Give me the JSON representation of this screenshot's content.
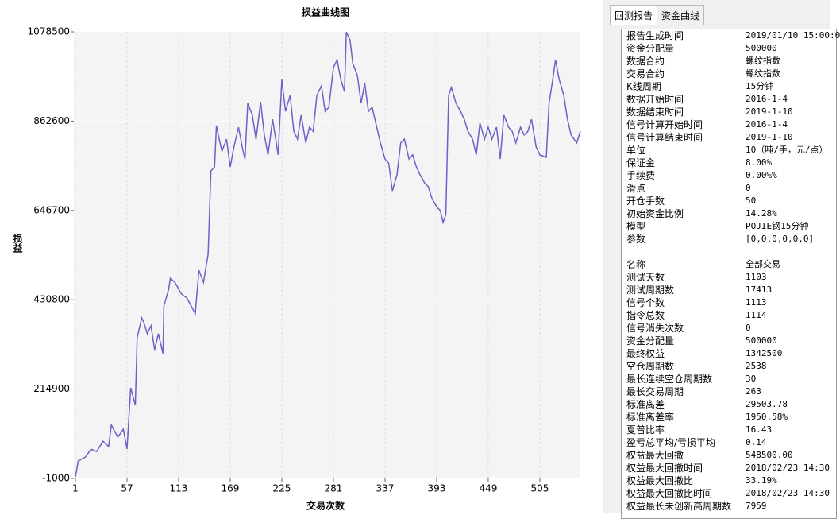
{
  "chart_data": {
    "type": "line",
    "title": "损益曲线图",
    "x_label": "交易次数",
    "y_label": "损益",
    "x": [
      1,
      4,
      12,
      18,
      24,
      31,
      37,
      40,
      47,
      53,
      57,
      61,
      66,
      68,
      73,
      75,
      79,
      83,
      87,
      91,
      96,
      97,
      102,
      104,
      109,
      116,
      122,
      129,
      131,
      135,
      140,
      145,
      148,
      152,
      154,
      157,
      160,
      165,
      169,
      173,
      178,
      182,
      185,
      188,
      193,
      197,
      202,
      206,
      210,
      215,
      221,
      225,
      229,
      234,
      238,
      242,
      246,
      251,
      255,
      259,
      263,
      268,
      272,
      276,
      281,
      285,
      289,
      293,
      295,
      299,
      302,
      307,
      311,
      315,
      319,
      323,
      328,
      332,
      337,
      341,
      345,
      350,
      354,
      358,
      363,
      367,
      371,
      375,
      380,
      384,
      388,
      393,
      397,
      400,
      403,
      406,
      409,
      414,
      419,
      423,
      427,
      432,
      436,
      440,
      445,
      449,
      453,
      458,
      462,
      466,
      471,
      475,
      479,
      484,
      488,
      492,
      496,
      501,
      505,
      512,
      515,
      519,
      522,
      526,
      531,
      535,
      539,
      545,
      549
    ],
    "series": [
      {
        "name": "损益",
        "color": "#6a62c8",
        "values": [
          2800,
          41000,
          50900,
          70000,
          64000,
          89000,
          76000,
          128000,
          99000,
          118000,
          70000,
          218000,
          176000,
          339000,
          387000,
          377000,
          349000,
          368000,
          310000,
          349000,
          301000,
          416000,
          454000,
          483000,
          473000,
          445000,
          435000,
          406000,
          397000,
          502000,
          473000,
          541000,
          742000,
          752000,
          852000,
          819000,
          790000,
          819000,
          752000,
          800000,
          848000,
          800000,
          771000,
          906000,
          877000,
          819000,
          909000,
          829000,
          781000,
          867000,
          781000,
          963000,
          886000,
          925000,
          838000,
          819000,
          877000,
          810000,
          848000,
          838000,
          925000,
          948000,
          886000,
          896000,
          992000,
          1011000,
          963000,
          934000,
          1078000,
          1059000,
          1002000,
          973000,
          906000,
          954000,
          886000,
          896000,
          848000,
          810000,
          771000,
          761000,
          694000,
          733000,
          810000,
          819000,
          771000,
          781000,
          752000,
          733000,
          713000,
          704000,
          675000,
          656000,
          646000,
          618000,
          637000,
          925000,
          944000,
          906000,
          886000,
          867000,
          838000,
          819000,
          781000,
          858000,
          819000,
          848000,
          819000,
          848000,
          771000,
          877000,
          848000,
          838000,
          810000,
          848000,
          829000,
          838000,
          867000,
          800000,
          781000,
          775000,
          906000,
          963000,
          1011000,
          963000,
          925000,
          867000,
          829000,
          810000,
          838000
        ]
      }
    ],
    "xlim": [
      1,
      549
    ],
    "xticks": [
      1,
      57,
      113,
      169,
      225,
      281,
      337,
      393,
      449,
      505
    ],
    "ylim": [
      -1000,
      1078500
    ],
    "yticks": [
      -1000,
      214900,
      430800,
      646700,
      862600,
      1078500
    ],
    "grid": true
  },
  "tabs": [
    "回测报告",
    "资金曲线"
  ],
  "report": {
    "sections": [
      [
        [
          "报告生成时间",
          "2019/01/10 15:00:0"
        ],
        [
          "资金分配量",
          "500000"
        ],
        [
          "数据合约",
          "螺纹指数"
        ],
        [
          "交易合约",
          "螺纹指数"
        ],
        [
          "K线周期",
          "15分钟"
        ],
        [
          "数据开始时间",
          "2016-1-4"
        ],
        [
          "数据结束时间",
          "2019-1-10"
        ],
        [
          "信号计算开始时间",
          "2016-1-4"
        ],
        [
          "信号计算结束时间",
          "2019-1-10"
        ],
        [
          "单位",
          "10（吨/手，元/点）"
        ],
        [
          "保证金",
          "8.00%"
        ],
        [
          "手续费",
          "0.00%%"
        ],
        [
          "滑点",
          "0"
        ],
        [
          "开仓手数",
          "50"
        ],
        [
          "初始资金比例",
          "14.28%"
        ],
        [
          "模型",
          "POJIE钢15分钟"
        ],
        [
          "参数",
          "[0,0,0,0,0,0]"
        ]
      ],
      [
        [
          "名称",
          "全部交易"
        ],
        [
          "测试天数",
          "1103"
        ],
        [
          "测试周期数",
          "17413"
        ],
        [
          "信号个数",
          "1113"
        ],
        [
          "指令总数",
          "1114"
        ],
        [
          "信号消失次数",
          "0"
        ],
        [
          "资金分配量",
          "500000"
        ],
        [
          "最终权益",
          "1342500"
        ],
        [
          "空仓周期数",
          "2538"
        ],
        [
          "最长连续空仓周期数",
          "30"
        ],
        [
          "最长交易周期",
          "263"
        ],
        [
          "标准离差",
          "29503.78"
        ],
        [
          "标准离差率",
          "1950.58%"
        ],
        [
          "夏普比率",
          "16.43"
        ],
        [
          "盈亏总平均/亏损平均",
          "0.14"
        ],
        [
          "权益最大回撤",
          "548500.00"
        ],
        [
          "权益最大回撤时间",
          "2018/02/23 14:30"
        ],
        [
          "权益最大回撤比",
          "33.19%"
        ],
        [
          "权益最大回撤比时间",
          "2018/02/23 14:30"
        ],
        [
          "权益最长未创新高周期数",
          "7959"
        ]
      ]
    ]
  }
}
